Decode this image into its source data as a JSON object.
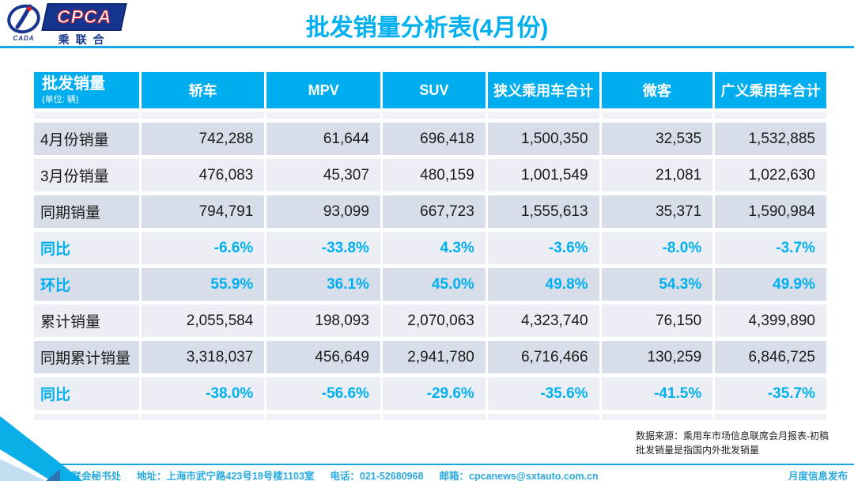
{
  "logo": {
    "emblem_text": "CADA",
    "box_text": "CPCA",
    "box_subtext": "乘联合"
  },
  "title": "批发销量分析表(4月份)",
  "chart_data": {
    "type": "table",
    "title": "批发销量分析表(4月份)",
    "corner": {
      "label": "批发销量",
      "unit": "(单位: 辆)"
    },
    "columns": [
      "轿车",
      "MPV",
      "SUV",
      "狭义乘用车合计",
      "微客",
      "广义乘用车合计"
    ],
    "rows": [
      {
        "label": "4月份销量",
        "type": "number",
        "values": [
          "742,288",
          "61,644",
          "696,418",
          "1,500,350",
          "32,535",
          "1,532,885"
        ]
      },
      {
        "label": "3月份销量",
        "type": "number",
        "values": [
          "476,083",
          "45,307",
          "480,159",
          "1,001,549",
          "21,081",
          "1,022,630"
        ]
      },
      {
        "label": "同期销量",
        "type": "number",
        "values": [
          "794,791",
          "93,099",
          "667,723",
          "1,555,613",
          "35,371",
          "1,590,984"
        ]
      },
      {
        "label": "同比",
        "type": "percent",
        "values": [
          "-6.6%",
          "-33.8%",
          "4.3%",
          "-3.6%",
          "-8.0%",
          "-3.7%"
        ]
      },
      {
        "label": "环比",
        "type": "percent",
        "values": [
          "55.9%",
          "36.1%",
          "45.0%",
          "49.8%",
          "54.3%",
          "49.9%"
        ]
      },
      {
        "label": "累计销量",
        "type": "number",
        "values": [
          "2,055,584",
          "198,093",
          "2,070,063",
          "4,323,740",
          "76,150",
          "4,399,890"
        ]
      },
      {
        "label": "同期累计销量",
        "type": "number",
        "values": [
          "3,318,037",
          "456,649",
          "2,941,780",
          "6,716,466",
          "130,259",
          "6,846,725"
        ]
      },
      {
        "label": "同比",
        "type": "percent",
        "values": [
          "-38.0%",
          "-56.6%",
          "-29.6%",
          "-35.6%",
          "-41.5%",
          "-35.7%"
        ]
      }
    ]
  },
  "notes": {
    "line1": "数据来源：乘用车市场信息联席会月报表-初稿",
    "line2": "批发销量是指国内外批发销量"
  },
  "footer": {
    "org": "乘联会秘书处",
    "address": "地址：上海市武宁路423号18号楼1103室",
    "phone": "电话：021-52680968",
    "email": "邮箱：cpcanews@sxtauto.com.cn",
    "right": "月度信息发布"
  },
  "colors": {
    "accent_cyan": "#00AEEF",
    "percent_text": "#00B0F0",
    "title_text": "#00B0F0",
    "band_dark": "#D8DEE9",
    "band_light": "#EBEEF4",
    "divider_blue": "#16A5E4",
    "logo_navy": "#17348E",
    "footer_text": "#2BA9E1"
  }
}
